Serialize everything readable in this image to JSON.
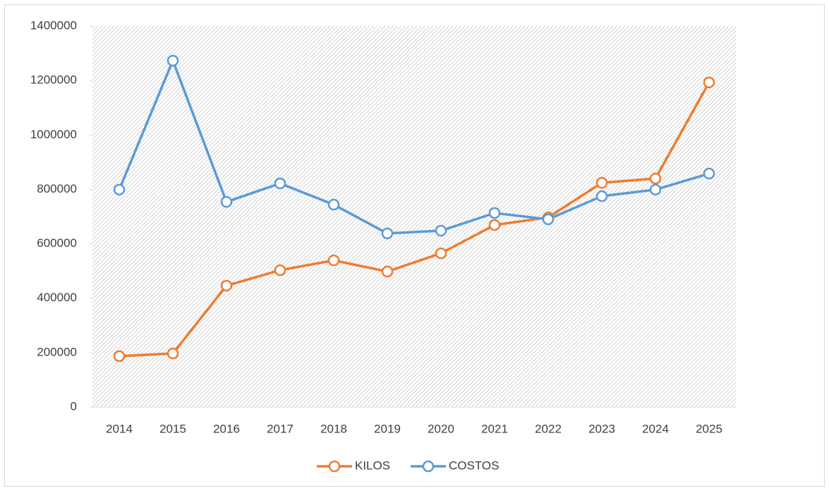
{
  "chart_data": {
    "type": "line",
    "categories": [
      "2014",
      "2015",
      "2016",
      "2017",
      "2018",
      "2019",
      "2020",
      "2021",
      "2022",
      "2023",
      "2024",
      "2025"
    ],
    "series": [
      {
        "name": "KILOS",
        "color": "#ed7d31",
        "values": [
          187000,
          197000,
          446000,
          503000,
          539000,
          498000,
          565000,
          669000,
          697000,
          824000,
          840000,
          1193000
        ]
      },
      {
        "name": "COSTOS",
        "color": "#5b9bd5",
        "values": [
          799000,
          1273000,
          754000,
          822000,
          744000,
          638000,
          648000,
          713000,
          690000,
          775000,
          799000,
          858000
        ]
      }
    ],
    "ylim": [
      0,
      1400000
    ],
    "yticks": [
      0,
      200000,
      400000,
      600000,
      800000,
      1000000,
      1200000,
      1400000
    ],
    "legend": "bottom"
  }
}
